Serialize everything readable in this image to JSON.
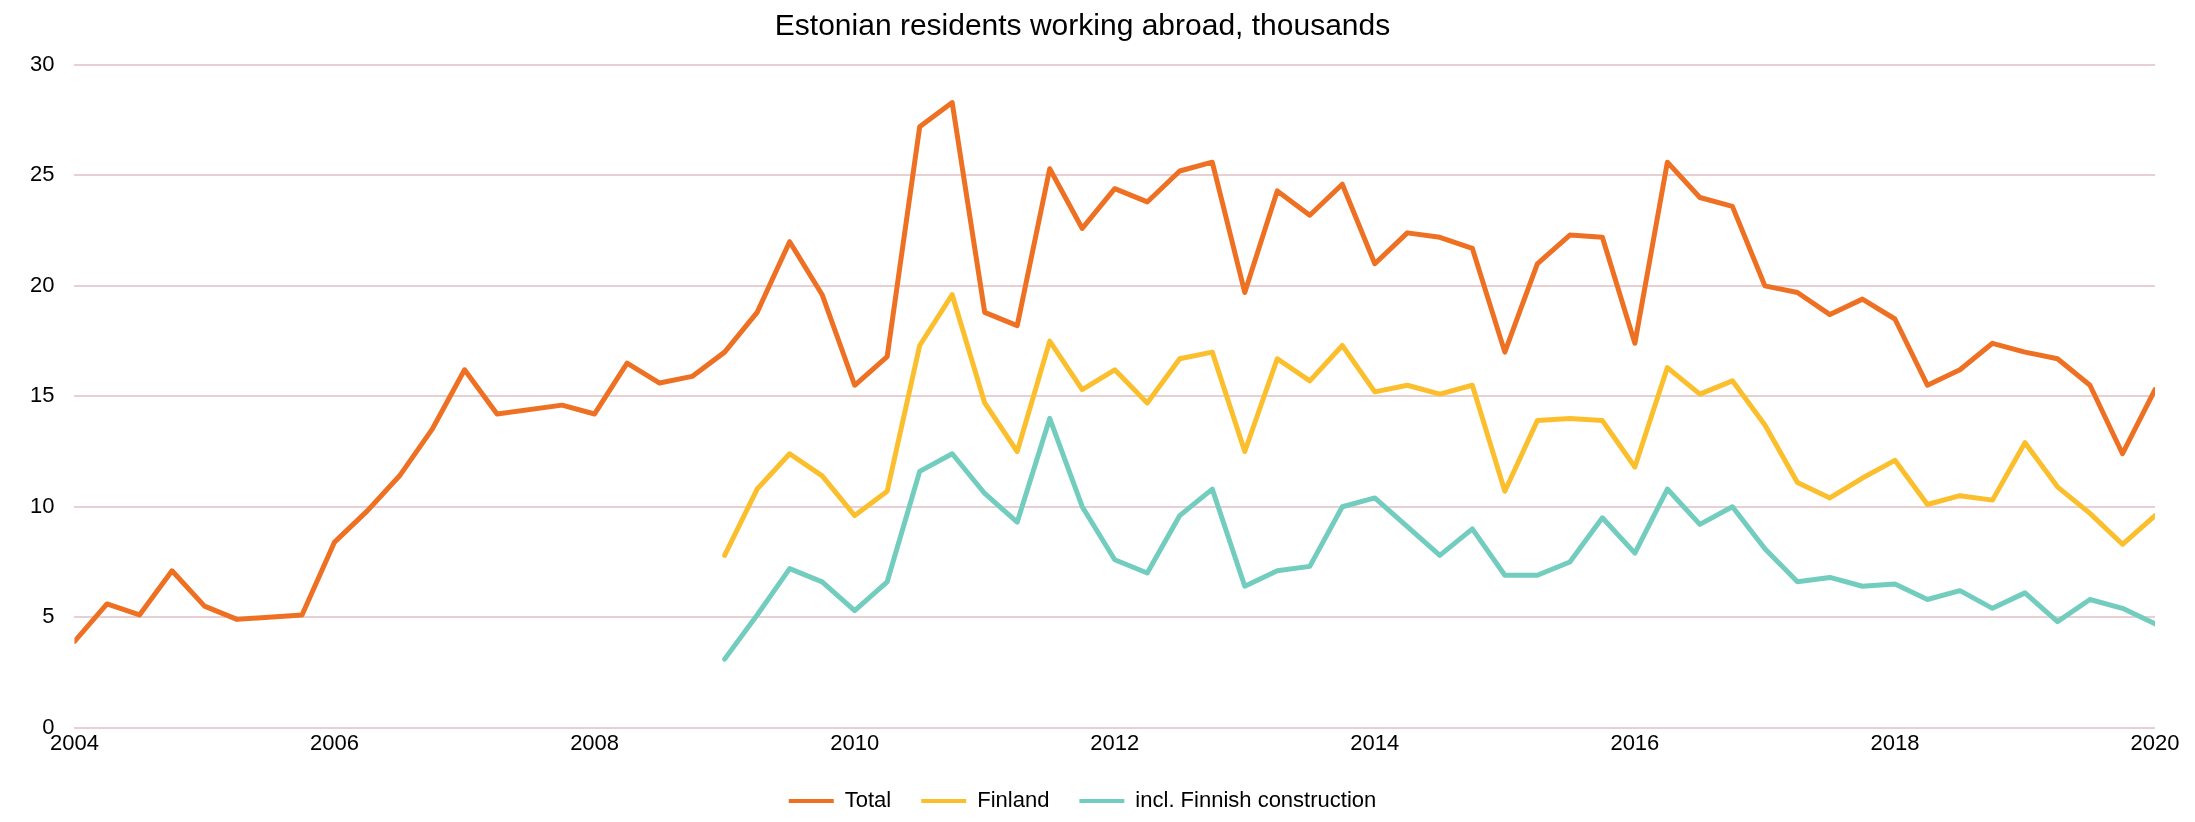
{
  "chart_data": {
    "type": "line",
    "title": "Estonian residents working abroad, thousands",
    "xlim": [
      2004,
      2020
    ],
    "xticks": [
      2004,
      2006,
      2008,
      2010,
      2012,
      2014,
      2016,
      2018,
      2020
    ],
    "ylim": [
      0,
      30
    ],
    "yticks": [
      0,
      5,
      10,
      15,
      20,
      25,
      30
    ],
    "grid": "y",
    "legend": "bottom",
    "marker": "none",
    "line_style": "solid",
    "series": [
      {
        "name": "Total",
        "color": "#ee7023",
        "x": [
          2004,
          2004.25,
          2004.5,
          2004.75,
          2005,
          2005.25,
          2005.75,
          2006,
          2006.25,
          2006.5,
          2006.75,
          2007,
          2007.25,
          2007.75,
          2008,
          2008.25,
          2008.5,
          2008.75,
          2009,
          2009.25,
          2009.5,
          2009.75,
          2010,
          2010.25,
          2010.5,
          2010.75,
          2011,
          2011.25,
          2011.5,
          2011.75,
          2012,
          2012.25,
          2012.5,
          2012.75,
          2013,
          2013.25,
          2013.5,
          2013.75,
          2014,
          2014.25,
          2014.5,
          2014.75,
          2015,
          2015.25,
          2015.5,
          2015.75,
          2016,
          2016.25,
          2016.5,
          2016.75,
          2017,
          2017.25,
          2017.5,
          2017.75,
          2018,
          2018.25,
          2018.5,
          2018.75,
          2019,
          2019.25,
          2019.5,
          2019.75,
          2020
        ],
        "values": [
          3.9,
          5.6,
          5.1,
          7.1,
          5.5,
          4.9,
          5.1,
          8.4,
          9.8,
          11.4,
          13.5,
          16.2,
          14.2,
          14.6,
          14.2,
          16.5,
          15.6,
          15.9,
          17.0,
          18.8,
          22.0,
          19.6,
          15.5,
          16.8,
          27.2,
          28.3,
          18.8,
          18.2,
          25.3,
          22.6,
          24.4,
          23.8,
          25.2,
          25.6,
          19.7,
          24.3,
          23.2,
          24.6,
          21.0,
          22.4,
          22.2,
          21.7,
          17.0,
          21.0,
          22.3,
          22.2,
          17.4,
          25.6,
          24.0,
          23.6,
          20.0,
          19.7,
          18.7,
          19.4,
          18.5,
          15.5,
          16.2,
          17.4,
          17.0,
          16.7,
          15.5,
          12.4,
          15.3
        ]
      },
      {
        "name": "Finland",
        "color": "#fbbf2d",
        "x": [
          2009,
          2009.25,
          2009.5,
          2009.75,
          2010,
          2010.25,
          2010.5,
          2010.75,
          2011,
          2011.25,
          2011.5,
          2011.75,
          2012,
          2012.25,
          2012.5,
          2012.75,
          2013,
          2013.25,
          2013.5,
          2013.75,
          2014,
          2014.25,
          2014.5,
          2014.75,
          2015,
          2015.25,
          2015.5,
          2015.75,
          2016,
          2016.25,
          2016.5,
          2016.75,
          2017,
          2017.25,
          2017.5,
          2017.75,
          2018,
          2018.25,
          2018.5,
          2018.75,
          2019,
          2019.25,
          2019.5,
          2019.75,
          2020
        ],
        "values": [
          7.8,
          10.8,
          12.4,
          11.4,
          9.6,
          10.7,
          17.3,
          19.6,
          14.7,
          12.5,
          17.5,
          15.3,
          16.2,
          14.7,
          16.7,
          17.0,
          12.5,
          16.7,
          15.7,
          17.3,
          15.2,
          15.5,
          15.1,
          15.5,
          10.7,
          13.9,
          14.0,
          13.9,
          11.8,
          16.3,
          15.1,
          15.7,
          13.7,
          11.1,
          10.4,
          11.3,
          12.1,
          10.1,
          10.5,
          10.3,
          12.9,
          10.9,
          9.7,
          8.3,
          9.6
        ]
      },
      {
        "name": "incl. Finnish construction",
        "color": "#72cdbf",
        "x": [
          2009,
          2009.25,
          2009.5,
          2009.75,
          2010,
          2010.25,
          2010.5,
          2010.75,
          2011,
          2011.25,
          2011.5,
          2011.75,
          2012,
          2012.25,
          2012.5,
          2012.75,
          2013,
          2013.25,
          2013.5,
          2013.75,
          2014,
          2014.25,
          2014.5,
          2014.75,
          2015,
          2015.25,
          2015.5,
          2015.75,
          2016,
          2016.25,
          2016.5,
          2016.75,
          2017,
          2017.25,
          2017.5,
          2017.75,
          2018,
          2018.25,
          2018.5,
          2018.75,
          2019,
          2019.25,
          2019.5,
          2019.75,
          2020
        ],
        "values": [
          3.1,
          5.1,
          7.2,
          6.6,
          5.3,
          6.6,
          11.6,
          12.4,
          10.6,
          9.3,
          14.0,
          10.0,
          7.6,
          7.0,
          9.6,
          10.8,
          6.4,
          7.1,
          7.3,
          10.0,
          10.4,
          9.1,
          7.8,
          9.0,
          6.9,
          6.9,
          7.5,
          9.5,
          7.9,
          10.8,
          9.2,
          10.0,
          8.1,
          6.6,
          6.8,
          6.4,
          6.5,
          5.8,
          6.2,
          5.4,
          6.1,
          4.8,
          5.8,
          5.4,
          4.7
        ]
      }
    ]
  }
}
